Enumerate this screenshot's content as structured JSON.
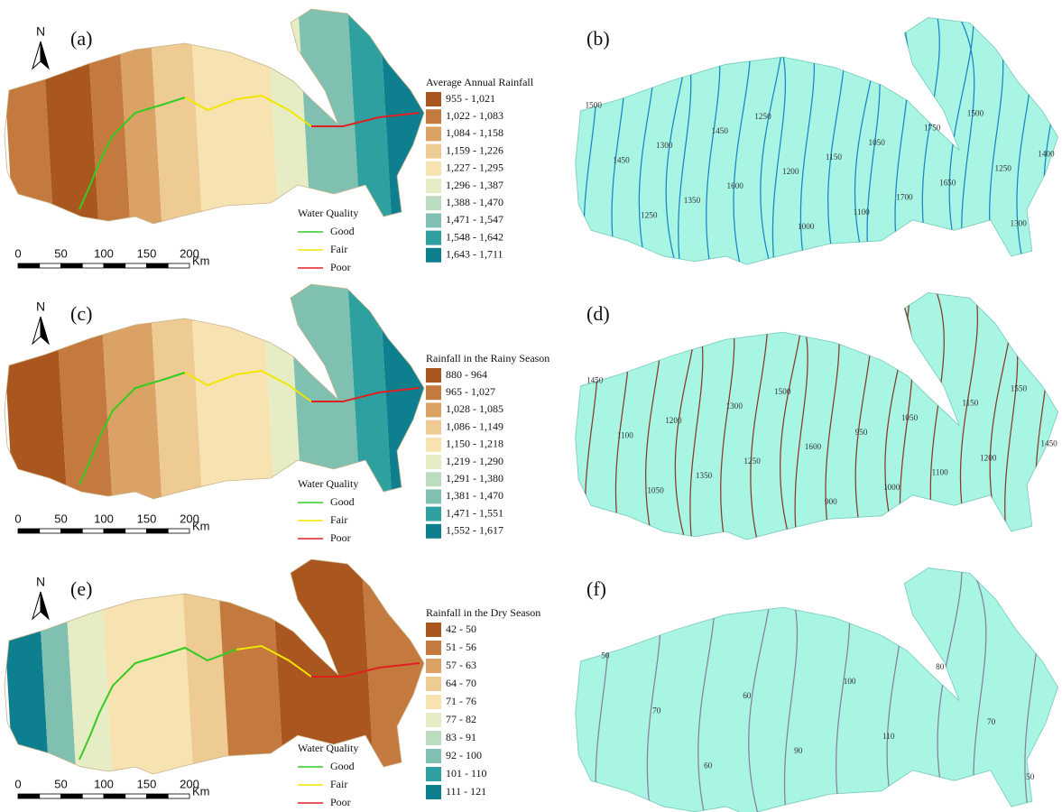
{
  "panels": [
    {
      "label": "(a)",
      "north": "N",
      "legend_title": "Average Annual Rainfall",
      "classes": [
        {
          "label": "955 - 1,021",
          "color": "#a9561f"
        },
        {
          "label": "1,022 - 1,083",
          "color": "#c47a3e"
        },
        {
          "label": "1,084 - 1,158",
          "color": "#dba265"
        },
        {
          "label": "1,159 - 1,226",
          "color": "#eecb92"
        },
        {
          "label": "1,227 - 1,295",
          "color": "#f7e3b1"
        },
        {
          "label": "1,296 - 1,387",
          "color": "#e6edc4"
        },
        {
          "label": "1,388 - 1,470",
          "color": "#bcdcc0"
        },
        {
          "label": "1,471 - 1,547",
          "color": "#7fc0b1"
        },
        {
          "label": "1,548 - 1,642",
          "color": "#2ea0a0"
        },
        {
          "label": "1,643 - 1,711",
          "color": "#0e7f8e"
        }
      ]
    },
    {
      "label": "(c)",
      "north": "N",
      "legend_title": "Rainfall in the Rainy Season",
      "classes": [
        {
          "label": "880 - 964",
          "color": "#a9561f"
        },
        {
          "label": "965 - 1,027",
          "color": "#c47a3e"
        },
        {
          "label": "1,028 - 1,085",
          "color": "#dba265"
        },
        {
          "label": "1,086 - 1,149",
          "color": "#eecb92"
        },
        {
          "label": "1,150 - 1,218",
          "color": "#f7e3b1"
        },
        {
          "label": "1,219 - 1,290",
          "color": "#e6edc4"
        },
        {
          "label": "1,291 - 1,380",
          "color": "#bcdcc0"
        },
        {
          "label": "1,381 - 1,470",
          "color": "#7fc0b1"
        },
        {
          "label": "1,471 - 1,551",
          "color": "#2ea0a0"
        },
        {
          "label": "1,552 - 1,617",
          "color": "#0e7f8e"
        }
      ]
    },
    {
      "label": "(e)",
      "north": "N",
      "legend_title": "Rainfall in the Dry Season",
      "classes": [
        {
          "label": "42 - 50",
          "color": "#a9561f"
        },
        {
          "label": "51 - 56",
          "color": "#c47a3e"
        },
        {
          "label": "57 - 63",
          "color": "#dba265"
        },
        {
          "label": "64 - 70",
          "color": "#eecb92"
        },
        {
          "label": "71 - 76",
          "color": "#f7e3b1"
        },
        {
          "label": "77 - 82",
          "color": "#e6edc4"
        },
        {
          "label": "83 - 91",
          "color": "#bcdcc0"
        },
        {
          "label": "92 - 100",
          "color": "#7fc0b1"
        },
        {
          "label": "101 - 110",
          "color": "#2ea0a0"
        },
        {
          "label": "111 - 121",
          "color": "#0e7f8e"
        }
      ]
    }
  ],
  "water_quality": {
    "title": "Water Quality",
    "items": [
      {
        "label": "Good",
        "color": "#33cc22"
      },
      {
        "label": "Fair",
        "color": "#f2e600"
      },
      {
        "label": "Poor",
        "color": "#e02020"
      }
    ]
  },
  "scale": {
    "ticks": [
      "0",
      "50",
      "100",
      "150",
      "200"
    ],
    "unit": "Km"
  },
  "contour_maps": [
    {
      "label": "(b)",
      "line_color": "#1a86c4",
      "contour_labels": [
        "1500",
        "1450",
        "1250",
        "1300",
        "1350",
        "1450",
        "1600",
        "1250",
        "1200",
        "1000",
        "1150",
        "1100",
        "1050",
        "1700",
        "1750",
        "1650",
        "1500",
        "1250",
        "1300",
        "1400"
      ]
    },
    {
      "label": "(d)",
      "line_color": "#8a3a2a",
      "contour_labels": [
        "1450",
        "1100",
        "1050",
        "1200",
        "1350",
        "1300",
        "1250",
        "1500",
        "1600",
        "900",
        "950",
        "1000",
        "1050",
        "1100",
        "1150",
        "1200",
        "1550",
        "1450"
      ]
    },
    {
      "label": "(f)",
      "line_color": "#8c7ea0",
      "contour_labels": [
        "50",
        "70",
        "60",
        "60",
        "90",
        "100",
        "110",
        "80",
        "70",
        "50"
      ]
    }
  ]
}
